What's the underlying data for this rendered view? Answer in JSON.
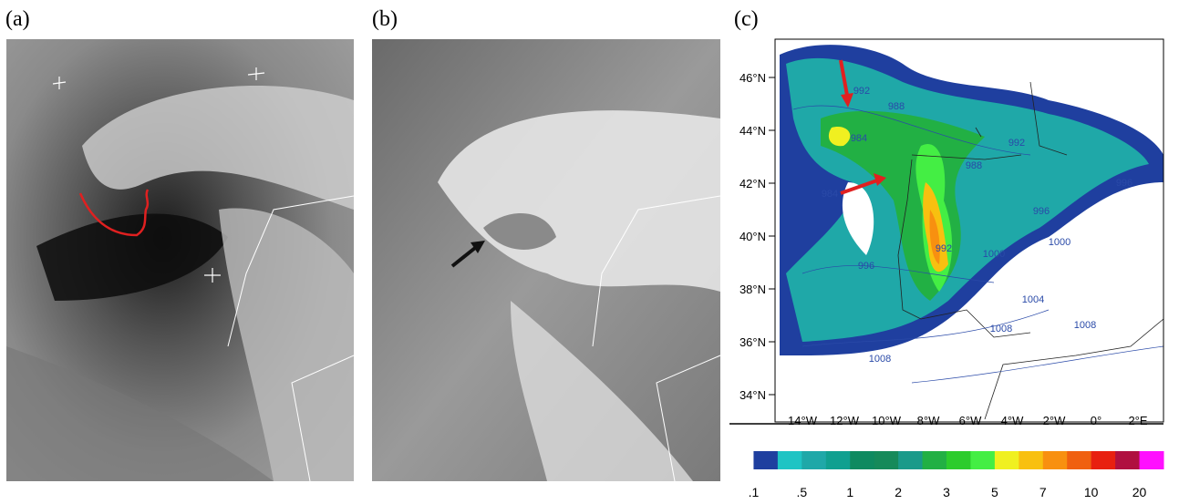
{
  "panels": [
    {
      "label": "(a)"
    },
    {
      "label": "(b)"
    },
    {
      "label": "(c)"
    }
  ],
  "map": {
    "lat_ticks": [
      "46°N",
      "44°N",
      "42°N",
      "40°N",
      "38°N",
      "36°N",
      "34°N"
    ],
    "lon_ticks": [
      "14°W",
      "12°W",
      "10°W",
      "8°W",
      "6°W",
      "4°W",
      "2°W",
      "0°",
      "2°E"
    ],
    "contour_labels": [
      "992",
      "988",
      "984",
      "984",
      "992",
      "988",
      "996",
      "996",
      "1000",
      "996",
      "992",
      "1000",
      "1004",
      "1008",
      "1008",
      "1008"
    ]
  },
  "colorbar": {
    "labels": [
      ".1",
      ".5",
      "1",
      "2",
      "3",
      "5",
      "7",
      "10",
      "20"
    ],
    "colors": [
      "#ffffff",
      "#1f3f9f",
      "#1fc4c4",
      "#1fa8a8",
      "#10a090",
      "#0f8a60",
      "#168a5a",
      "#1a9a8a",
      "#22b044",
      "#2ccc2c",
      "#44ee44",
      "#f0f020",
      "#f8c010",
      "#f89010",
      "#f06010",
      "#e82010",
      "#b01040",
      "#ff10ff"
    ]
  }
}
